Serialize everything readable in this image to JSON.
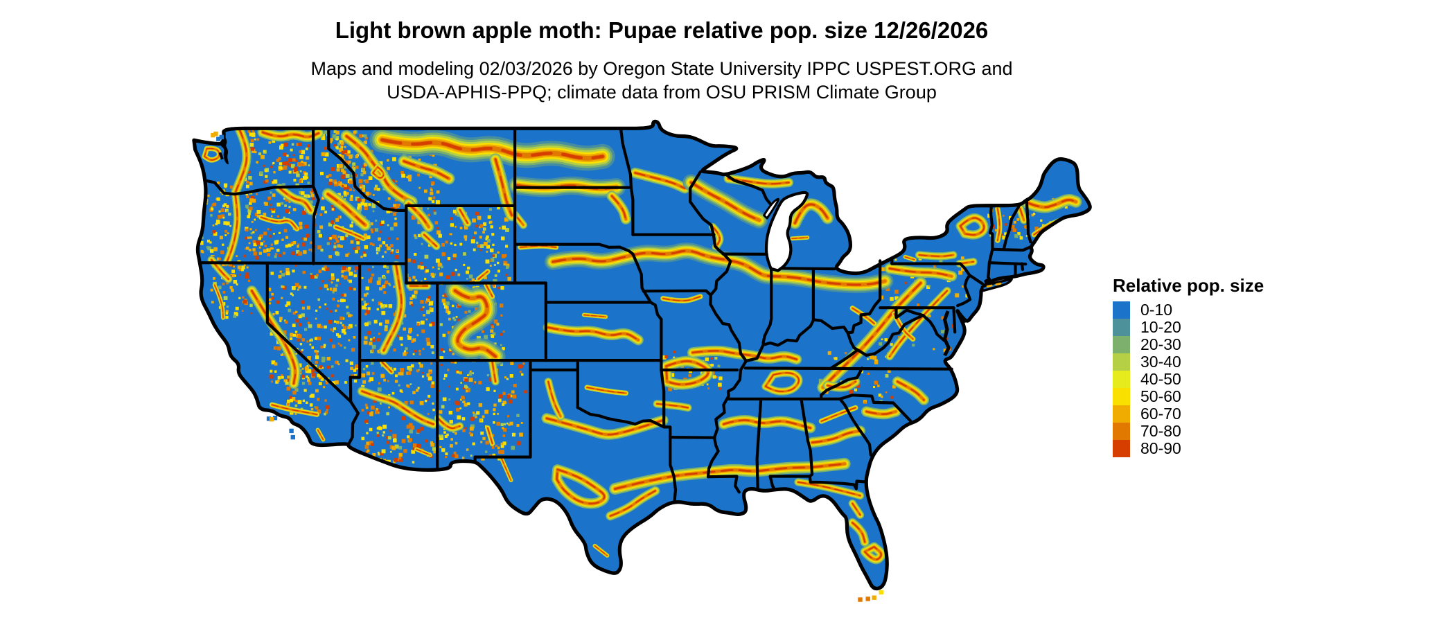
{
  "header": {
    "title": "Light brown apple moth: Pupae relative pop. size 12/26/2026",
    "subtitle_line1": "Maps and modeling 02/03/2026 by Oregon State University IPPC USPEST.ORG and",
    "subtitle_line2": "USDA-APHIS-PPQ; climate data from OSU PRISM Climate Group"
  },
  "map": {
    "region": "Contiguous United States",
    "base_color": "#1B74C9",
    "border_color": "#000000",
    "water_color": "#FFFFFF"
  },
  "legend": {
    "title": "Relative pop. size",
    "items": [
      {
        "label": "0-10",
        "color": "#1B74C9"
      },
      {
        "label": "10-20",
        "color": "#4D929B"
      },
      {
        "label": "20-30",
        "color": "#7DB06C"
      },
      {
        "label": "30-40",
        "color": "#B5D045"
      },
      {
        "label": "40-50",
        "color": "#E6EB1E"
      },
      {
        "label": "50-60",
        "color": "#FAE000"
      },
      {
        "label": "60-70",
        "color": "#F0AC00"
      },
      {
        "label": "70-80",
        "color": "#E17800"
      },
      {
        "label": "80-90",
        "color": "#D63E00"
      }
    ]
  },
  "chart_data": {
    "type": "heatmap",
    "subtype": "choropleth-raster-map",
    "title": "Light brown apple moth: Pupae relative pop. size 12/26/2026",
    "region": "Contiguous United States with state boundaries",
    "legend_title": "Relative pop. size",
    "bins": [
      "0-10",
      "10-20",
      "20-30",
      "30-40",
      "40-50",
      "50-60",
      "60-70",
      "70-80",
      "80-90"
    ],
    "bin_colors": [
      "#1B74C9",
      "#4D929B",
      "#7DB06C",
      "#B5D045",
      "#E6EB1E",
      "#FAE000",
      "#F0AC00",
      "#E17800",
      "#D63E00"
    ],
    "dominant_bin": "0-10",
    "pattern_note": "Mostly low (blue) values with yellow-orange-red high bands along mountain ranges of the West, a broad band across northern Montana into North Dakota, bands through the central plains, Gulf states, Appalachians, Great Lakes states and Florida"
  }
}
